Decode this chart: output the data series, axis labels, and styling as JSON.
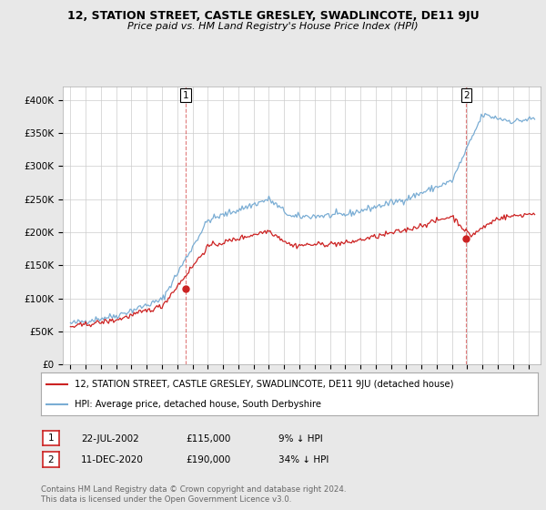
{
  "title": "12, STATION STREET, CASTLE GRESLEY, SWADLINCOTE, DE11 9JU",
  "subtitle": "Price paid vs. HM Land Registry's House Price Index (HPI)",
  "ylim": [
    0,
    420000
  ],
  "yticks": [
    0,
    50000,
    100000,
    150000,
    200000,
    250000,
    300000,
    350000,
    400000
  ],
  "ytick_labels": [
    "£0",
    "£50K",
    "£100K",
    "£150K",
    "£200K",
    "£250K",
    "£300K",
    "£350K",
    "£400K"
  ],
  "background_color": "#e8e8e8",
  "plot_bg_color": "#ffffff",
  "grid_color": "#cccccc",
  "hpi_color": "#7aadd4",
  "price_color": "#cc2222",
  "marker1_date": 2002.55,
  "marker1_price": 115000,
  "marker1_label": "1",
  "marker2_date": 2020.94,
  "marker2_price": 190000,
  "marker2_label": "2",
  "legend_line1": "12, STATION STREET, CASTLE GRESLEY, SWADLINCOTE, DE11 9JU (detached house)",
  "legend_line2": "HPI: Average price, detached house, South Derbyshire",
  "table_row1": [
    "1",
    "22-JUL-2002",
    "£115,000",
    "9% ↓ HPI"
  ],
  "table_row2": [
    "2",
    "11-DEC-2020",
    "£190,000",
    "34% ↓ HPI"
  ],
  "footer": "Contains HM Land Registry data © Crown copyright and database right 2024.\nThis data is licensed under the Open Government Licence v3.0.",
  "xmin": 1994.5,
  "xmax": 2025.8
}
